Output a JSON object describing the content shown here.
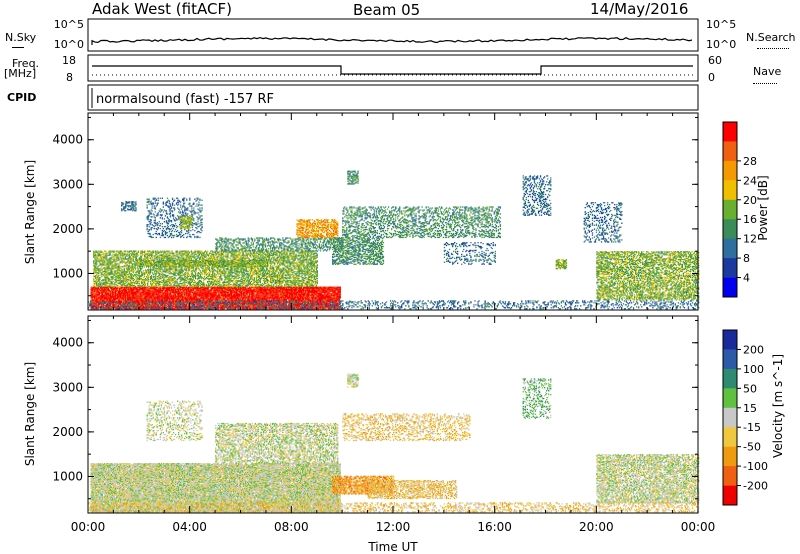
{
  "header": {
    "station": "Adak West (fitACF)",
    "beam": "Beam 05",
    "date": "14/May/2016"
  },
  "top_panels": {
    "nsky_label": "N.Sky",
    "nsky_ticks": [
      "10^5",
      "10^0"
    ],
    "nsearch_label": "N.Search",
    "nsearch_ticks": [
      "10^5",
      "10^0"
    ],
    "freq_label": "Freq.",
    "freq_unit": "[MHz]",
    "freq_ticks": [
      "18",
      "8"
    ],
    "nave_label": "Nave",
    "nave_ticks": [
      "60",
      "0"
    ],
    "cpid_label": "CPID",
    "cpid_text": "normalsound (fast) -157 RF"
  },
  "chart_data": [
    {
      "type": "heatmap",
      "name": "power",
      "ylabel": "Slant Range [km]",
      "xlabel": "",
      "ylim": [
        180,
        4600
      ],
      "yticks": [
        1000,
        2000,
        3000,
        4000
      ],
      "colorbar": {
        "label": "Power [dB]",
        "ticks": [
          4,
          8,
          12,
          16,
          20,
          24,
          28
        ],
        "levels": [
          "#0000ee",
          "#1a3aa0",
          "#2e6fa0",
          "#3a8c58",
          "#6ab030",
          "#f0c000",
          "#f49a00",
          "#f06010",
          "#ff0000"
        ]
      },
      "regions": [
        {
          "t0": 0.1,
          "t1": 9.9,
          "r0": 200,
          "r1": 700,
          "level": 8,
          "density": 0.9
        },
        {
          "t0": 0.2,
          "t1": 9.0,
          "r0": 700,
          "r1": 1500,
          "level": 4,
          "density": 0.6
        },
        {
          "t0": 2.0,
          "t1": 7.0,
          "r0": 1150,
          "r1": 1300,
          "level": 4,
          "density": 0.7
        },
        {
          "t0": 5.0,
          "t1": 10.0,
          "r0": 1500,
          "r1": 1800,
          "level": 3,
          "density": 0.4
        },
        {
          "t0": 8.2,
          "t1": 9.8,
          "r0": 1800,
          "r1": 2200,
          "level": 6,
          "density": 0.6
        },
        {
          "t0": 9.6,
          "t1": 11.6,
          "r0": 1200,
          "r1": 1800,
          "level": 3,
          "density": 0.5
        },
        {
          "t0": 10.0,
          "t1": 16.2,
          "r0": 1800,
          "r1": 2500,
          "level": 3,
          "density": 0.35
        },
        {
          "t0": 10.2,
          "t1": 10.6,
          "r0": 3000,
          "r1": 3300,
          "level": 3,
          "density": 0.6
        },
        {
          "t0": 1.3,
          "t1": 1.9,
          "r0": 2400,
          "r1": 2600,
          "level": 2,
          "density": 0.5
        },
        {
          "t0": 2.3,
          "t1": 4.5,
          "r0": 1800,
          "r1": 2700,
          "level": 2,
          "density": 0.25
        },
        {
          "t0": 3.6,
          "t1": 4.1,
          "r0": 2000,
          "r1": 2300,
          "level": 4,
          "density": 0.6
        },
        {
          "t0": 17.1,
          "t1": 18.2,
          "r0": 2300,
          "r1": 3200,
          "level": 2,
          "density": 0.3
        },
        {
          "t0": 18.4,
          "t1": 18.8,
          "r0": 1100,
          "r1": 1300,
          "level": 4,
          "density": 0.7
        },
        {
          "t0": 20.0,
          "t1": 24.0,
          "r0": 400,
          "r1": 1500,
          "level": 4,
          "density": 0.55
        },
        {
          "t0": 19.5,
          "t1": 21.0,
          "r0": 1700,
          "r1": 2600,
          "level": 2,
          "density": 0.25
        },
        {
          "t0": 0.0,
          "t1": 24.0,
          "r0": 200,
          "r1": 380,
          "level": 2,
          "density": 0.25
        },
        {
          "t0": 14.0,
          "t1": 16.0,
          "r0": 1200,
          "r1": 1700,
          "level": 2,
          "density": 0.2
        }
      ]
    },
    {
      "type": "heatmap",
      "name": "velocity",
      "ylabel": "Slant Range [km]",
      "xlabel": "Time UT",
      "ylim": [
        180,
        4600
      ],
      "yticks": [
        1000,
        2000,
        3000,
        4000
      ],
      "xticks": [
        "00:00",
        "04:00",
        "08:00",
        "12:00",
        "16:00",
        "20:00",
        "00:00"
      ],
      "xlim": [
        0,
        24
      ],
      "colorbar": {
        "label": "Velocity [m s^-1]",
        "ticks": [
          "200",
          "100",
          "50",
          "15",
          "-15",
          "-50",
          "-100",
          "-200"
        ],
        "levels": [
          "#1a2a9a",
          "#2a5aa8",
          "#2e8a70",
          "#60c040",
          "#c8c8c8",
          "#f0c840",
          "#f09a10",
          "#f06010",
          "#ee0000"
        ]
      },
      "regions": [
        {
          "t0": 0.1,
          "t1": 9.9,
          "r0": 200,
          "r1": 1300,
          "level": 4,
          "density": 0.85
        },
        {
          "t0": 5.0,
          "t1": 9.8,
          "r0": 1300,
          "r1": 2200,
          "level": 4,
          "density": 0.5
        },
        {
          "t0": 9.6,
          "t1": 12.0,
          "r0": 600,
          "r1": 1000,
          "level": 6,
          "density": 0.65
        },
        {
          "t0": 11.0,
          "t1": 14.5,
          "r0": 500,
          "r1": 900,
          "level": 5,
          "density": 0.5
        },
        {
          "t0": 10.0,
          "t1": 15.0,
          "r0": 1800,
          "r1": 2400,
          "level": 5,
          "density": 0.3
        },
        {
          "t0": 10.2,
          "t1": 10.6,
          "r0": 3000,
          "r1": 3300,
          "level": 4,
          "density": 0.6
        },
        {
          "t0": 2.3,
          "t1": 4.5,
          "r0": 1800,
          "r1": 2700,
          "level": 4,
          "density": 0.25
        },
        {
          "t0": 17.1,
          "t1": 18.2,
          "r0": 2300,
          "r1": 3200,
          "level": 3,
          "density": 0.3
        },
        {
          "t0": 20.0,
          "t1": 24.0,
          "r0": 400,
          "r1": 1500,
          "level": 4,
          "density": 0.6
        },
        {
          "t0": 0.0,
          "t1": 24.0,
          "r0": 200,
          "r1": 400,
          "level": 5,
          "density": 0.3
        }
      ]
    }
  ]
}
